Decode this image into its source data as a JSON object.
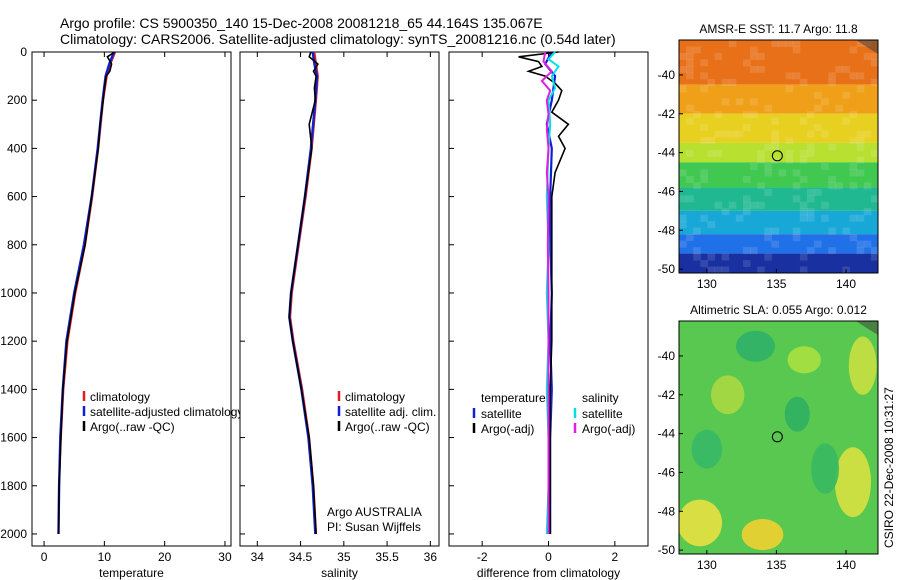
{
  "header": {
    "line1": "Argo profile: CS 5900350_140 15-Dec-2008 20081218_65 44.164S 135.067E",
    "line2": "Climatology: CARS2006. Satellite-adjusted climatology: synTS_20081216.nc (0.54d later)"
  },
  "footer": {
    "credit": "Argo AUSTRALIA",
    "pi": "PI: Susan Wijffels",
    "stamp": "CSIRO 22-Dec-2008 10:31:27"
  },
  "colors": {
    "climatology": "#e02020",
    "satellite": "#1020d0",
    "argo": "#000000",
    "sat_salinity": "#00e0e8",
    "argo_salinity": "#e020e0"
  },
  "chart_data": [
    {
      "type": "line",
      "xlabel": "temperature",
      "ylabel": "",
      "xlim": [
        -2,
        31
      ],
      "ylim": [
        2050,
        0
      ],
      "xticks": [
        0,
        10,
        20,
        30
      ],
      "yticks": [
        0,
        200,
        400,
        600,
        800,
        1000,
        1200,
        1400,
        1600,
        1800,
        2000
      ],
      "legend": [
        "climatology",
        "satellite-adjusted climatology",
        "Argo(..raw -QC)"
      ],
      "series": [
        {
          "name": "climatology",
          "color": "climatology",
          "depth": [
            0,
            50,
            100,
            200,
            400,
            600,
            800,
            1000,
            1200,
            1400,
            1600,
            1800,
            2000
          ],
          "values": [
            11.8,
            11.0,
            10.4,
            9.8,
            9.0,
            8.0,
            6.8,
            5.2,
            3.9,
            3.2,
            2.8,
            2.5,
            2.4
          ]
        },
        {
          "name": "satellite-adjusted climatology",
          "color": "satellite",
          "depth": [
            0,
            50,
            100,
            200,
            400,
            600,
            800,
            1000,
            1200,
            1400,
            1600,
            1800,
            2000
          ],
          "values": [
            11.6,
            10.8,
            10.2,
            9.7,
            8.9,
            7.9,
            6.6,
            5.0,
            3.7,
            3.1,
            2.7,
            2.5,
            2.4
          ]
        },
        {
          "name": "Argo(..raw -QC)",
          "color": "argo",
          "depth": [
            0,
            20,
            50,
            80,
            100,
            150,
            200,
            300,
            400,
            600,
            800,
            1000,
            1200,
            1400,
            1600,
            1800,
            2000
          ],
          "values": [
            11.7,
            10.5,
            11.2,
            10.9,
            10.3,
            10.0,
            9.8,
            9.3,
            9.0,
            7.9,
            6.8,
            5.1,
            3.8,
            3.1,
            2.8,
            2.5,
            2.4
          ]
        }
      ]
    },
    {
      "type": "line",
      "xlabel": "salinity",
      "ylabel": "",
      "xlim": [
        33.8,
        36.1
      ],
      "ylim": [
        2050,
        0
      ],
      "xticks": [
        34,
        34.5,
        35,
        35.5,
        36
      ],
      "legend": [
        "climatology",
        "satellite adj. clim.",
        "Argo(..raw -QC)"
      ],
      "series": [
        {
          "name": "climatology",
          "color": "climatology",
          "depth": [
            0,
            50,
            100,
            200,
            400,
            600,
            800,
            1000,
            1100,
            1200,
            1400,
            1600,
            1800,
            2000
          ],
          "values": [
            34.66,
            34.68,
            34.7,
            34.68,
            34.63,
            34.56,
            34.48,
            34.4,
            34.38,
            34.42,
            34.52,
            34.6,
            34.65,
            34.68
          ]
        },
        {
          "name": "satellite adj. clim.",
          "color": "satellite",
          "depth": [
            0,
            50,
            100,
            200,
            400,
            600,
            800,
            1000,
            1100,
            1200,
            1400,
            1600,
            1800,
            2000
          ],
          "values": [
            34.64,
            34.66,
            34.69,
            34.67,
            34.62,
            34.55,
            34.47,
            34.39,
            34.37,
            34.41,
            34.51,
            34.59,
            34.64,
            34.67
          ]
        },
        {
          "name": "Argo(..raw -QC)",
          "color": "argo",
          "depth": [
            0,
            20,
            50,
            80,
            100,
            150,
            200,
            300,
            400,
            600,
            800,
            1000,
            1100,
            1200,
            1400,
            1600,
            1800,
            2000
          ],
          "values": [
            34.62,
            34.6,
            34.7,
            34.65,
            34.68,
            34.66,
            34.67,
            34.6,
            34.63,
            34.55,
            34.47,
            34.39,
            34.37,
            34.41,
            34.51,
            34.6,
            34.65,
            34.68
          ]
        }
      ]
    },
    {
      "type": "line",
      "xlabel": "difference from climatology",
      "ylabel": "",
      "xlim": [
        -3,
        3
      ],
      "ylim": [
        2050,
        0
      ],
      "xticks": [
        -2,
        0,
        2
      ],
      "legend_left_title": "temperature",
      "legend_right_title": "salinity",
      "legend": [
        "satellite",
        "Argo(-adj)",
        "satellite",
        "Argo(-adj)"
      ],
      "series": [
        {
          "name": "satellite",
          "color": "satellite",
          "depth": [
            0,
            50,
            100,
            200,
            300,
            400,
            600,
            800,
            1000,
            1200,
            1400,
            1600,
            1800,
            2000
          ],
          "values": [
            0.1,
            -0.1,
            0.2,
            0.1,
            -0.05,
            0.1,
            0.05,
            0.05,
            0.1,
            0.05,
            0.1,
            0.05,
            0.05,
            0.05
          ]
        },
        {
          "name": "Argo(-adj)",
          "color": "argo",
          "depth": [
            0,
            20,
            40,
            60,
            80,
            100,
            130,
            160,
            200,
            250,
            300,
            350,
            400,
            500,
            600,
            800,
            1000,
            1200,
            1400,
            1600,
            1800,
            2000
          ],
          "values": [
            0.3,
            -0.9,
            -0.3,
            -0.2,
            -0.6,
            -0.1,
            0.2,
            0.4,
            0.3,
            0.1,
            0.6,
            0.3,
            0.5,
            0.2,
            0.1,
            0.1,
            0.1,
            0.1,
            0.05,
            0.05,
            0.05,
            0.05
          ]
        },
        {
          "name": "satellite",
          "color": "sat_salinity",
          "depth": [
            0,
            30,
            60,
            100,
            150,
            200,
            300,
            400,
            600,
            800,
            1000,
            1200,
            1400,
            1600,
            1800,
            2000
          ],
          "values": [
            0.2,
            0.0,
            0.3,
            0.1,
            0.2,
            0.0,
            0.05,
            0.0,
            -0.05,
            0.0,
            -0.05,
            0.0,
            -0.05,
            0.0,
            0.0,
            -0.05
          ]
        },
        {
          "name": "Argo(-adj)",
          "color": "argo_salinity",
          "depth": [
            0,
            40,
            80,
            120,
            160,
            200,
            260,
            320,
            400,
            500,
            600,
            800,
            1000,
            1200,
            1400,
            1600,
            1800,
            2000
          ],
          "values": [
            -0.1,
            -0.15,
            0.1,
            -0.2,
            0.05,
            -0.05,
            0.0,
            -0.05,
            0.0,
            -0.05,
            0.0,
            -0.02,
            0.0,
            0.0,
            0.0,
            0.0,
            0.0,
            0.0
          ]
        }
      ]
    },
    {
      "type": "heatmap",
      "title": "AMSR-E SST: 11.7 Argo: 11.8",
      "xlim": [
        128,
        142.3
      ],
      "ylim": [
        -50.2,
        -38.2
      ],
      "xticks": [
        130,
        135,
        140
      ],
      "yticks": [
        -40,
        -42,
        -44,
        -46,
        -48,
        -50
      ],
      "marker": {
        "x": 135.067,
        "y": -44.164
      },
      "color_bands": [
        {
          "lat_top": -38.2,
          "lat_bottom": -40.5,
          "color": "#e87018"
        },
        {
          "lat_top": -40.5,
          "lat_bottom": -42.0,
          "color": "#f0a018"
        },
        {
          "lat_top": -42.0,
          "lat_bottom": -43.5,
          "color": "#e8d020"
        },
        {
          "lat_top": -43.5,
          "lat_bottom": -44.5,
          "color": "#b8e030"
        },
        {
          "lat_top": -44.5,
          "lat_bottom": -45.8,
          "color": "#40c850"
        },
        {
          "lat_top": -45.8,
          "lat_bottom": -47.0,
          "color": "#20b890"
        },
        {
          "lat_top": -47.0,
          "lat_bottom": -48.2,
          "color": "#18a8d8"
        },
        {
          "lat_top": -48.2,
          "lat_bottom": -49.2,
          "color": "#2070e8"
        },
        {
          "lat_top": -49.2,
          "lat_bottom": -50.2,
          "color": "#1830a0"
        }
      ]
    },
    {
      "type": "heatmap",
      "title": "Altimetric SLA: 0.055 Argo: 0.012",
      "xlim": [
        128,
        142.3
      ],
      "ylim": [
        -50.2,
        -38.2
      ],
      "xticks": [
        130,
        135,
        140
      ],
      "yticks": [
        -40,
        -42,
        -44,
        -46,
        -48,
        -50
      ],
      "marker": {
        "x": 135.067,
        "y": -44.164
      },
      "background_color": "#58c850",
      "blobs": [
        {
          "x": 129.5,
          "y": -48.6,
          "rx": 1.6,
          "ry": 1.2,
          "color": "#e8e040"
        },
        {
          "x": 134.0,
          "y": -49.2,
          "rx": 1.5,
          "ry": 0.8,
          "color": "#f0d030"
        },
        {
          "x": 140.5,
          "y": -46.5,
          "rx": 1.3,
          "ry": 1.8,
          "color": "#d8e040"
        },
        {
          "x": 141.2,
          "y": -40.5,
          "rx": 1.0,
          "ry": 1.5,
          "color": "#c8e040"
        },
        {
          "x": 131.5,
          "y": -42.0,
          "rx": 1.2,
          "ry": 1.0,
          "color": "#a8d840"
        },
        {
          "x": 136.5,
          "y": -43.0,
          "rx": 0.9,
          "ry": 0.9,
          "color": "#30b060"
        },
        {
          "x": 133.5,
          "y": -39.5,
          "rx": 1.4,
          "ry": 0.8,
          "color": "#30b068"
        },
        {
          "x": 138.5,
          "y": -45.8,
          "rx": 1.0,
          "ry": 1.3,
          "color": "#38b860"
        },
        {
          "x": 130.0,
          "y": -44.8,
          "rx": 1.1,
          "ry": 1.0,
          "color": "#38b868"
        },
        {
          "x": 137.0,
          "y": -40.2,
          "rx": 1.2,
          "ry": 0.7,
          "color": "#a8e040"
        }
      ]
    }
  ]
}
